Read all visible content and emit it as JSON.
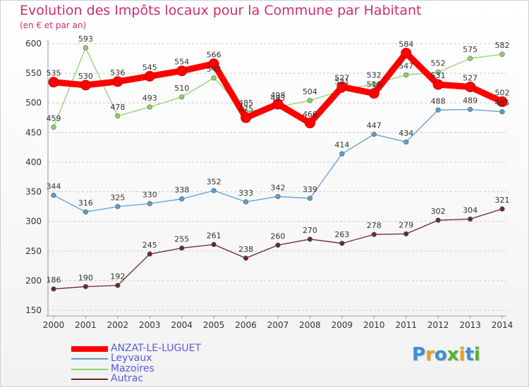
{
  "title": "Evolution des Impôts locaux pour la Commune par Habitant",
  "subtitle": "(en € et par an)",
  "logo_text": "Proxiti",
  "chart_data": {
    "type": "line",
    "title": "Evolution des Impôts locaux pour la Commune par Habitant",
    "subtitle": "(en € et par an)",
    "x": [
      "2000",
      "2001",
      "2002",
      "2003",
      "2004",
      "2005",
      "2006",
      "2007",
      "2008",
      "2009",
      "2010",
      "2011",
      "2012",
      "2013",
      "2014"
    ],
    "ylim": [
      150,
      600
    ],
    "yticks": [
      150,
      200,
      250,
      300,
      350,
      400,
      450,
      500,
      550,
      600
    ],
    "grid": "horizontal dashed",
    "legend": "bottom-left",
    "series": [
      {
        "name": "ANZAT-LE-LUGUET",
        "color": "#ff0000",
        "values": [
          535,
          530,
          536,
          545,
          554,
          566,
          475,
          498,
          466,
          527,
          516,
          584,
          531,
          527,
          502
        ]
      },
      {
        "name": "Leyvaux",
        "color": "#5a9fd4",
        "values": [
          344,
          316,
          325,
          330,
          338,
          352,
          333,
          342,
          339,
          414,
          447,
          434,
          488,
          489,
          485
        ]
      },
      {
        "name": "Mazoires",
        "color": "#8ed36b",
        "values": [
          459,
          593,
          478,
          493,
          510,
          542,
          485,
          493,
          504,
          521,
          532,
          547,
          552,
          575,
          582
        ]
      },
      {
        "name": "Autrac",
        "color": "#6b2a2a",
        "values": [
          186,
          190,
          192,
          245,
          255,
          261,
          238,
          260,
          270,
          263,
          278,
          279,
          302,
          304,
          321
        ]
      }
    ],
    "point_labels": {
      "ANZAT-LE-LUGUET": [
        "535",
        "530",
        "536",
        "545",
        "554",
        "566",
        "475",
        "498",
        "466",
        "527",
        "516",
        "584",
        "531",
        "527",
        "502"
      ],
      "Leyvaux": [
        "344",
        "316",
        "325",
        "330",
        "338",
        "352",
        "333",
        "342",
        "339",
        "414",
        "447",
        "434",
        "488",
        "489",
        "485"
      ],
      "Mazoires": [
        "459",
        "593",
        "478",
        "493",
        "510",
        "542",
        "485",
        "493",
        "504",
        "521",
        "532",
        "547",
        "552",
        "575",
        "582"
      ],
      "Autrac": [
        "186",
        "190",
        "192",
        "245",
        "255",
        "261",
        "238",
        "260",
        "270",
        "263",
        "278",
        "279",
        "302",
        "304",
        "321"
      ]
    }
  }
}
